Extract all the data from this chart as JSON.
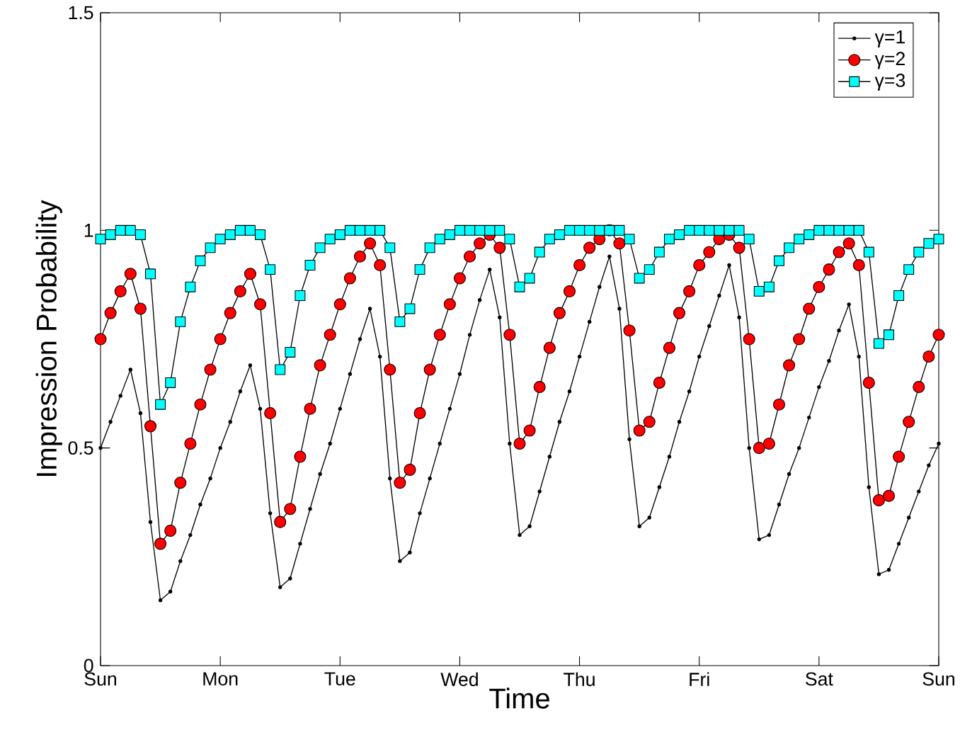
{
  "chart_data": {
    "type": "line",
    "xlabel": "Time",
    "ylabel": "Impression Probability",
    "categories": [
      "Sun",
      null,
      null,
      null,
      null,
      null,
      null,
      null,
      null,
      null,
      null,
      null,
      "Mon",
      null,
      null,
      null,
      null,
      null,
      null,
      null,
      null,
      null,
      null,
      null,
      "Tue",
      null,
      null,
      null,
      null,
      null,
      null,
      null,
      null,
      null,
      null,
      null,
      "Wed",
      null,
      null,
      null,
      null,
      null,
      null,
      null,
      null,
      null,
      null,
      null,
      "Thu",
      null,
      null,
      null,
      null,
      null,
      null,
      null,
      null,
      null,
      null,
      null,
      "Fri",
      null,
      null,
      null,
      null,
      null,
      null,
      null,
      null,
      null,
      null,
      null,
      "Sat",
      null,
      null,
      null,
      null,
      null,
      null,
      null,
      null,
      null,
      null,
      null,
      "Sun"
    ],
    "ylim": [
      0,
      1.5
    ],
    "yticks": [
      0,
      0.5,
      1,
      1.5
    ],
    "grid": false,
    "legend": "top right",
    "line_style": "solid",
    "series": [
      {
        "name": "γ=1",
        "color": "#000000",
        "marker": "circle",
        "values": [
          0.5,
          0.56,
          0.62,
          0.68,
          0.58,
          0.33,
          0.15,
          0.17,
          0.24,
          0.3,
          0.37,
          0.43,
          0.5,
          0.56,
          0.63,
          0.69,
          0.59,
          0.35,
          0.18,
          0.2,
          0.28,
          0.36,
          0.44,
          0.51,
          0.59,
          0.67,
          0.75,
          0.82,
          0.71,
          0.43,
          0.24,
          0.26,
          0.35,
          0.43,
          0.51,
          0.59,
          0.67,
          0.76,
          0.84,
          0.91,
          0.8,
          0.51,
          0.3,
          0.32,
          0.4,
          0.48,
          0.56,
          0.63,
          0.71,
          0.79,
          0.87,
          0.94,
          0.82,
          0.52,
          0.32,
          0.34,
          0.41,
          0.48,
          0.56,
          0.63,
          0.71,
          0.78,
          0.85,
          0.92,
          0.8,
          0.5,
          0.29,
          0.3,
          0.37,
          0.44,
          0.5,
          0.57,
          0.64,
          0.7,
          0.77,
          0.83,
          0.71,
          0.41,
          0.21,
          0.22,
          0.28,
          0.34,
          0.4,
          0.46,
          0.51
        ]
      },
      {
        "name": "γ=2",
        "color": "#ff0000",
        "marker": "circle",
        "values": [
          0.75,
          0.81,
          0.86,
          0.9,
          0.82,
          0.55,
          0.28,
          0.31,
          0.42,
          0.51,
          0.6,
          0.68,
          0.75,
          0.81,
          0.86,
          0.9,
          0.83,
          0.58,
          0.33,
          0.36,
          0.48,
          0.59,
          0.69,
          0.76,
          0.83,
          0.89,
          0.94,
          0.97,
          0.92,
          0.68,
          0.42,
          0.45,
          0.58,
          0.68,
          0.76,
          0.83,
          0.89,
          0.94,
          0.97,
          0.99,
          0.96,
          0.76,
          0.51,
          0.54,
          0.64,
          0.73,
          0.81,
          0.86,
          0.92,
          0.96,
          0.98,
          1.0,
          0.97,
          0.77,
          0.54,
          0.56,
          0.65,
          0.73,
          0.81,
          0.86,
          0.92,
          0.95,
          0.98,
          0.99,
          0.96,
          0.75,
          0.5,
          0.51,
          0.6,
          0.69,
          0.75,
          0.82,
          0.87,
          0.91,
          0.95,
          0.97,
          0.92,
          0.65,
          0.38,
          0.39,
          0.48,
          0.56,
          0.64,
          0.71,
          0.76
        ]
      },
      {
        "name": "γ=3",
        "color": "#00ffff",
        "marker": "square",
        "values": [
          0.98,
          0.99,
          1.0,
          1.0,
          0.99,
          0.9,
          0.6,
          0.65,
          0.79,
          0.87,
          0.93,
          0.96,
          0.98,
          0.99,
          1.0,
          1.0,
          0.99,
          0.91,
          0.68,
          0.72,
          0.85,
          0.92,
          0.96,
          0.98,
          0.99,
          1.0,
          1.0,
          1.0,
          1.0,
          0.96,
          0.79,
          0.82,
          0.91,
          0.96,
          0.98,
          0.99,
          1.0,
          1.0,
          1.0,
          1.0,
          1.0,
          0.98,
          0.87,
          0.89,
          0.95,
          0.98,
          0.99,
          1.0,
          1.0,
          1.0,
          1.0,
          1.0,
          1.0,
          0.98,
          0.89,
          0.91,
          0.95,
          0.98,
          0.99,
          1.0,
          1.0,
          1.0,
          1.0,
          1.0,
          1.0,
          0.98,
          0.86,
          0.87,
          0.93,
          0.96,
          0.98,
          0.99,
          1.0,
          1.0,
          1.0,
          1.0,
          1.0,
          0.95,
          0.74,
          0.76,
          0.85,
          0.91,
          0.95,
          0.97,
          0.98
        ]
      }
    ]
  }
}
